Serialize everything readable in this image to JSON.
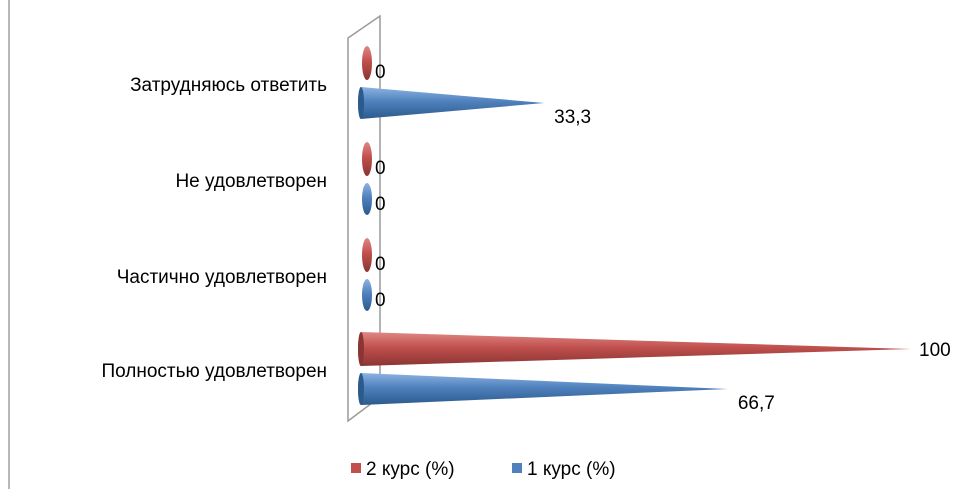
{
  "chart_data": {
    "type": "bar",
    "orientation": "horizontal",
    "style": "3d-cone",
    "title": "",
    "xlabel": "",
    "ylabel": "",
    "xlim": [
      0,
      100
    ],
    "categories": [
      "Полностью удовлетворен",
      "Частично удовлетворен",
      "Не удовлетворен",
      "Затрудняюсь ответить"
    ],
    "series": [
      {
        "name": "2 курс (%)",
        "color": "#c0504d",
        "values": [
          100,
          0,
          0,
          0
        ],
        "labels": [
          "100",
          "0",
          "0",
          "0"
        ]
      },
      {
        "name": "1 курс (%)",
        "color": "#4f81bd",
        "values": [
          66.7,
          0,
          0,
          33.3
        ],
        "labels": [
          "66,7",
          "0",
          "0",
          "33,3"
        ]
      }
    ],
    "legend_position": "bottom",
    "grid": false
  }
}
